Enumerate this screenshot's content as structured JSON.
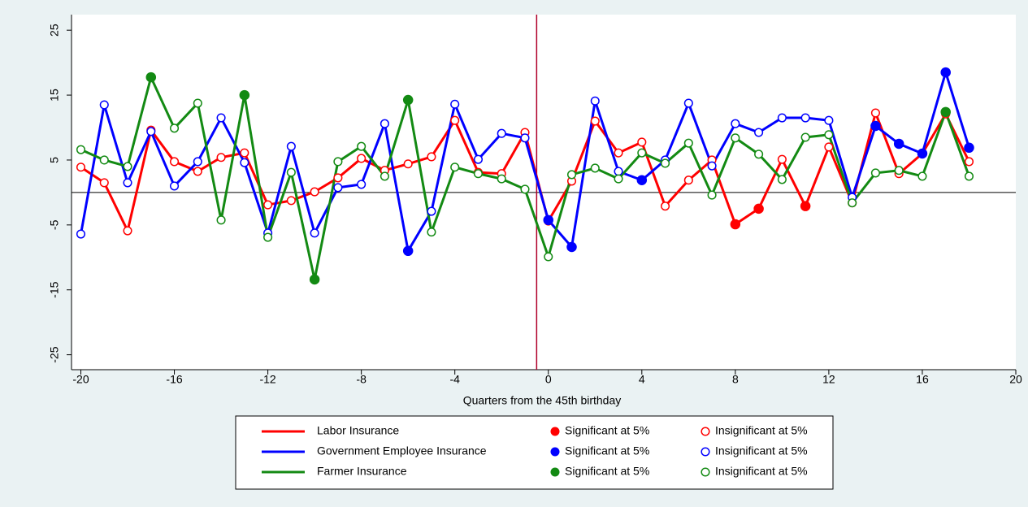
{
  "chart_data": {
    "type": "line",
    "x_label": "Quarters from the 45th birthday",
    "x": [
      -20,
      -19,
      -18,
      -17,
      -16,
      -15,
      -14,
      -13,
      -12,
      -11,
      -10,
      -9,
      -8,
      -7,
      -6,
      -5,
      -4,
      -3,
      -2,
      -1,
      0,
      1,
      2,
      3,
      4,
      5,
      6,
      7,
      8,
      9,
      10,
      11,
      12,
      13,
      14,
      15,
      16,
      17,
      18
    ],
    "series": [
      {
        "name": "Labor Insurance",
        "color": "#ff0000",
        "values": [
          3.9,
          1.5,
          -5.9,
          9.6,
          4.75,
          3.25,
          5.4,
          6.1,
          -1.9,
          -1.25,
          0.1,
          2.25,
          5.25,
          3.4,
          4.4,
          5.5,
          11.1,
          3.1,
          2.9,
          9.25,
          -4.4,
          1.75,
          11,
          6.1,
          7.75,
          -2.1,
          1.9,
          5,
          -4.9,
          -2.5,
          5.1,
          -2.1,
          7,
          -1.6,
          12.25,
          2.9,
          6,
          12.1,
          4.75
        ],
        "significant": [
          false,
          false,
          false,
          false,
          false,
          false,
          false,
          false,
          false,
          false,
          false,
          false,
          false,
          false,
          false,
          false,
          false,
          false,
          false,
          false,
          false,
          false,
          false,
          false,
          false,
          false,
          false,
          false,
          true,
          true,
          false,
          true,
          false,
          false,
          false,
          false,
          false,
          false,
          false
        ]
      },
      {
        "name": "Government Employee Insurance",
        "color": "#0000ff",
        "values": [
          -6.4,
          13.5,
          1.5,
          9.4,
          1,
          4.75,
          11.5,
          4.6,
          -6.25,
          7.1,
          -6.25,
          0.75,
          1.25,
          10.6,
          -9,
          -2.9,
          13.6,
          5.1,
          9.1,
          8.4,
          -4.25,
          -8.4,
          14.1,
          3.25,
          1.9,
          5,
          13.75,
          4.1,
          10.6,
          9.25,
          11.5,
          11.5,
          11.1,
          -0.75,
          10.25,
          7.5,
          6,
          18.5,
          6.9
        ],
        "significant": [
          false,
          false,
          false,
          false,
          false,
          false,
          false,
          false,
          false,
          false,
          false,
          false,
          false,
          false,
          true,
          false,
          false,
          false,
          false,
          false,
          true,
          true,
          false,
          false,
          true,
          false,
          false,
          false,
          false,
          false,
          false,
          false,
          false,
          false,
          true,
          true,
          true,
          true,
          true
        ]
      },
      {
        "name": "Farmer Insurance",
        "color": "#138a13",
        "values": [
          6.6,
          5,
          4,
          17.75,
          9.9,
          13.75,
          -4.25,
          15,
          -6.9,
          3.1,
          -13.4,
          4.75,
          7.1,
          2.5,
          14.25,
          -6.1,
          3.9,
          2.9,
          2.1,
          0.5,
          -9.9,
          2.75,
          3.75,
          2.1,
          6.1,
          4.5,
          7.6,
          -0.4,
          8.4,
          5.9,
          2,
          8.5,
          8.9,
          -1.6,
          3,
          3.4,
          2.5,
          12.4,
          2.5
        ],
        "significant": [
          false,
          false,
          false,
          true,
          false,
          false,
          false,
          true,
          false,
          false,
          true,
          false,
          false,
          false,
          true,
          false,
          false,
          false,
          false,
          false,
          false,
          false,
          false,
          false,
          false,
          false,
          false,
          false,
          false,
          false,
          false,
          false,
          false,
          false,
          false,
          false,
          false,
          true,
          false
        ]
      }
    ],
    "legend": {
      "significant": "Significant at 5%",
      "insignificant": "Insignificant at 5%"
    },
    "xlim": [
      -20.4,
      20
    ],
    "xticks": [
      -20,
      -16,
      -12,
      -8,
      -4,
      0,
      4,
      8,
      12,
      16,
      20
    ],
    "ylim": [
      -27.3,
      27.4
    ],
    "yticks": [
      -25,
      -15,
      -5,
      5,
      15,
      25
    ],
    "xline": -0.5,
    "xline_color": "#b0002a",
    "yline": 0
  }
}
